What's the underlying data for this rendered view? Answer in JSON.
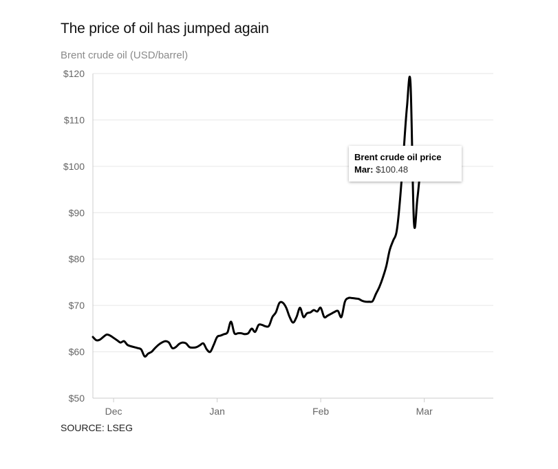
{
  "title": "The price of oil has jumped again",
  "subtitle": "Brent crude oil (USD/barrel)",
  "source": "SOURCE: LSEG",
  "colors": {
    "line": "#000000",
    "grid": "#e6e6e6",
    "axis": "#cccccc",
    "tick_text": "#666666"
  },
  "tooltip": {
    "title": "Brent crude oil price",
    "label": "Mar:",
    "value": "$100.48"
  },
  "chart_data": {
    "type": "line",
    "title": "The price of oil has jumped again",
    "ylabel": "Brent crude oil (USD/barrel)",
    "xlabel": "",
    "ylim": [
      50,
      120
    ],
    "y_ticks": [
      50,
      60,
      70,
      80,
      90,
      100,
      110,
      120
    ],
    "y_tick_labels": [
      "$50",
      "$60",
      "$70",
      "$80",
      "$90",
      "$100",
      "$110",
      "$120"
    ],
    "x_ticks": [
      {
        "label": "Dec",
        "day": 1
      },
      {
        "label": "Jan",
        "day": 31
      },
      {
        "label": "Feb",
        "day": 61
      },
      {
        "label": "Mar",
        "day": 91
      }
    ],
    "x_range_days": [
      -5,
      111
    ],
    "x_unit": "days since Dec 1",
    "series": [
      {
        "name": "Brent crude oil price",
        "points": [
          [
            -5,
            63.2
          ],
          [
            -4,
            62.5
          ],
          [
            -3,
            62.6
          ],
          [
            -2,
            63.2
          ],
          [
            -1,
            63.7
          ],
          [
            0,
            63.5
          ],
          [
            1,
            63.0
          ],
          [
            2,
            62.5
          ],
          [
            3,
            62.0
          ],
          [
            4,
            62.3
          ],
          [
            5,
            61.5
          ],
          [
            6,
            61.2
          ],
          [
            7,
            61.0
          ],
          [
            8,
            60.8
          ],
          [
            9,
            60.5
          ],
          [
            10,
            59.0
          ],
          [
            11,
            59.6
          ],
          [
            12,
            60.0
          ],
          [
            13,
            60.8
          ],
          [
            14,
            61.5
          ],
          [
            15,
            62.0
          ],
          [
            16,
            62.3
          ],
          [
            17,
            62.0
          ],
          [
            18,
            60.8
          ],
          [
            19,
            61.0
          ],
          [
            20,
            61.7
          ],
          [
            21,
            62.0
          ],
          [
            22,
            61.8
          ],
          [
            23,
            61.0
          ],
          [
            24,
            60.9
          ],
          [
            25,
            61.0
          ],
          [
            26,
            61.4
          ],
          [
            27,
            61.8
          ],
          [
            28,
            60.5
          ],
          [
            29,
            60.0
          ],
          [
            30,
            61.5
          ],
          [
            31,
            63.2
          ],
          [
            32,
            63.5
          ],
          [
            33,
            63.8
          ],
          [
            34,
            64.2
          ],
          [
            35,
            66.5
          ],
          [
            36,
            64.0
          ],
          [
            37,
            64.0
          ],
          [
            38,
            64.0
          ],
          [
            39,
            63.8
          ],
          [
            40,
            64.0
          ],
          [
            41,
            65.0
          ],
          [
            42,
            64.3
          ],
          [
            43,
            65.8
          ],
          [
            44,
            65.8
          ],
          [
            45,
            65.5
          ],
          [
            46,
            65.6
          ],
          [
            47,
            67.5
          ],
          [
            48,
            68.5
          ],
          [
            49,
            70.5
          ],
          [
            50,
            70.6
          ],
          [
            51,
            69.5
          ],
          [
            52,
            67.5
          ],
          [
            53,
            66.3
          ],
          [
            54,
            67.5
          ],
          [
            55,
            69.5
          ],
          [
            56,
            67.5
          ],
          [
            57,
            68.3
          ],
          [
            58,
            68.5
          ],
          [
            59,
            69.0
          ],
          [
            60,
            68.7
          ],
          [
            61,
            69.5
          ],
          [
            62,
            67.5
          ],
          [
            63,
            67.8
          ],
          [
            64,
            68.2
          ],
          [
            65,
            68.6
          ],
          [
            66,
            68.8
          ],
          [
            67,
            67.5
          ],
          [
            68,
            70.8
          ],
          [
            69,
            71.6
          ],
          [
            70,
            71.6
          ],
          [
            71,
            71.5
          ],
          [
            72,
            71.4
          ],
          [
            73,
            71.0
          ],
          [
            74,
            70.8
          ],
          [
            75,
            70.8
          ],
          [
            76,
            70.9
          ],
          [
            77,
            72.5
          ],
          [
            78,
            74.0
          ],
          [
            79,
            76.0
          ],
          [
            80,
            78.5
          ],
          [
            81,
            82.0
          ],
          [
            82,
            84.0
          ],
          [
            83,
            86.0
          ],
          [
            84,
            93.0
          ],
          [
            85,
            103.0
          ],
          [
            86,
            113.0
          ],
          [
            87,
            118.0
          ],
          [
            88,
            88.0
          ],
          [
            89,
            93.0
          ],
          [
            90,
            100.48
          ]
        ]
      }
    ]
  }
}
